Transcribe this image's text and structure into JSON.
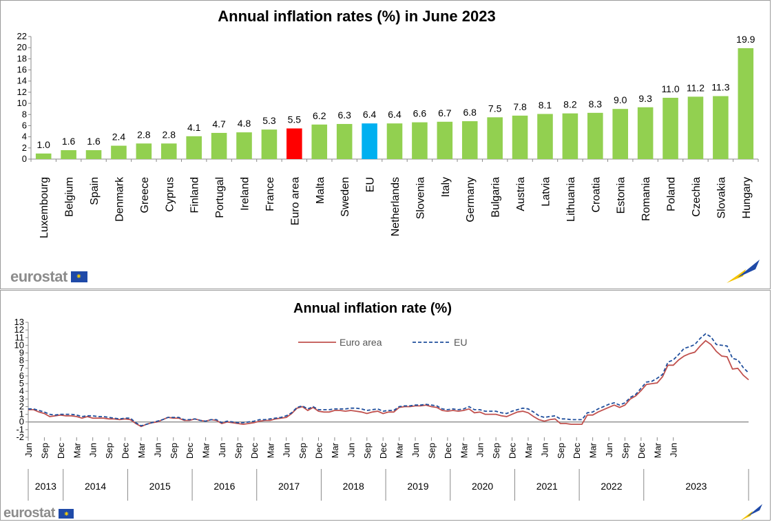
{
  "chart_data": [
    {
      "type": "bar",
      "title": "Annual inflation rates (%)  in June 2023",
      "categories": [
        "Luxembourg",
        "Belgium",
        "Spain",
        "Denmark",
        "Greece",
        "Cyprus",
        "Finland",
        "Portugal",
        "Ireland",
        "France",
        "Euro area",
        "Malta",
        "Sweden",
        "EU",
        "Netherlands",
        "Slovenia",
        "Italy",
        "Germany",
        "Bulgaria",
        "Austria",
        "Latvia",
        "Lithuania",
        "Croatia",
        "Estonia",
        "Romania",
        "Poland",
        "Czechia",
        "Slovakia",
        "Hungary"
      ],
      "values": [
        1.0,
        1.6,
        1.6,
        2.4,
        2.8,
        2.8,
        4.1,
        4.7,
        4.8,
        5.3,
        5.5,
        6.2,
        6.3,
        6.4,
        6.4,
        6.6,
        6.7,
        6.8,
        7.5,
        7.8,
        8.1,
        8.2,
        8.3,
        9.0,
        9.3,
        11.0,
        11.2,
        11.3,
        19.9
      ],
      "labels": [
        "1.0",
        "1.6",
        "1.6",
        "2.4",
        "2.8",
        "2.8",
        "4.1",
        "4.7",
        "4.8",
        "5.3",
        "5.5",
        "6.2",
        "6.3",
        "6.4",
        "6.4",
        "6.6",
        "6.7",
        "6.8",
        "7.5",
        "7.8",
        "8.1",
        "8.2",
        "8.3",
        "9.0",
        "9.3",
        "11.0",
        "11.2",
        "11.3",
        "19.9"
      ],
      "ylim": [
        0,
        22
      ],
      "yticks": [
        "0",
        "2",
        "4",
        "6",
        "8",
        "10",
        "12",
        "14",
        "16",
        "18",
        "20",
        "22"
      ],
      "colors": {
        "default": "#92d050",
        "highlight_euro_area": "#ff0000",
        "highlight_eu": "#00b0f0"
      },
      "highlights": {
        "Euro area": "#ff0000",
        "EU": "#00b0f0"
      },
      "grid": false
    },
    {
      "type": "line",
      "title": "Annual inflation rate (%)",
      "ylim": [
        -2,
        13
      ],
      "yticks": [
        "-2",
        "-1",
        "0",
        "1",
        "2",
        "3",
        "4",
        "5",
        "6",
        "7",
        "8",
        "9",
        "10",
        "11",
        "12",
        "13"
      ],
      "month_tick_labels": [
        "Jun",
        "Sep",
        "Dec",
        "Mar",
        "Jun",
        "Sep",
        "Dec",
        "Mar",
        "Jun",
        "Sep",
        "Dec",
        "Mar",
        "Jun",
        "Sep",
        "Dec",
        "Mar",
        "Jun",
        "Sep",
        "Dec",
        "Mar",
        "Jun",
        "Sep",
        "Dec",
        "Mar",
        "Jun",
        "Sep",
        "Dec",
        "Mar",
        "Jun",
        "Sep",
        "Dec",
        "Mar",
        "Jun",
        "Sep",
        "Dec",
        "Mar",
        "Jun",
        "Sep",
        "Dec",
        "Mar",
        "Jun"
      ],
      "years": [
        "2013",
        "2014",
        "2015",
        "2016",
        "2017",
        "2018",
        "2019",
        "2020",
        "2021",
        "2022",
        "2023"
      ],
      "x_start": "2013-06",
      "x_end": "2023-06",
      "legend_position": "top-left",
      "series": [
        {
          "name": "Euro area",
          "color": "#c0504d",
          "style": "solid",
          "values": [
            1.6,
            1.6,
            1.3,
            1.1,
            0.7,
            0.8,
            0.9,
            0.8,
            0.8,
            0.7,
            0.5,
            0.7,
            0.5,
            0.5,
            0.5,
            0.4,
            0.4,
            0.3,
            0.4,
            0.3,
            -0.2,
            -0.6,
            -0.3,
            -0.1,
            0.0,
            0.3,
            0.6,
            0.5,
            0.5,
            0.2,
            0.2,
            0.4,
            0.2,
            0.1,
            0.3,
            0.2,
            -0.2,
            0.0,
            -0.1,
            -0.2,
            -0.3,
            -0.2,
            -0.1,
            0.1,
            0.2,
            0.2,
            0.4,
            0.5,
            0.6,
            1.1,
            1.8,
            2.0,
            1.5,
            1.9,
            1.4,
            1.3,
            1.3,
            1.5,
            1.5,
            1.4,
            1.5,
            1.4,
            1.3,
            1.1,
            1.3,
            1.4,
            1.1,
            1.3,
            1.3,
            1.9,
            2.0,
            2.0,
            2.1,
            2.1,
            2.2,
            2.0,
            1.9,
            1.5,
            1.4,
            1.5,
            1.4,
            1.5,
            1.7,
            1.2,
            1.3,
            1.0,
            1.0,
            1.0,
            0.8,
            0.7,
            1.0,
            1.3,
            1.4,
            1.2,
            0.7,
            0.3,
            0.1,
            0.3,
            0.4,
            -0.2,
            -0.2,
            -0.3,
            -0.3,
            -0.3,
            0.9,
            0.9,
            1.3,
            1.6,
            1.9,
            2.2,
            1.9,
            2.2,
            3.0,
            3.4,
            4.1,
            4.9,
            5.0,
            5.1,
            5.9,
            7.4,
            7.4,
            8.1,
            8.6,
            8.9,
            9.1,
            9.9,
            10.6,
            10.1,
            9.2,
            8.6,
            8.5,
            6.9,
            7.0,
            6.1,
            5.5
          ]
        },
        {
          "name": "EU",
          "color": "#1f4e9c",
          "style": "dashed",
          "values": [
            1.7,
            1.7,
            1.5,
            1.3,
            1.0,
            0.9,
            1.0,
            1.0,
            1.0,
            0.9,
            0.7,
            0.8,
            0.8,
            0.7,
            0.7,
            0.6,
            0.5,
            0.4,
            0.5,
            0.5,
            -0.1,
            -0.5,
            -0.3,
            -0.1,
            0.1,
            0.3,
            0.6,
            0.6,
            0.6,
            0.3,
            0.3,
            0.4,
            0.2,
            0.1,
            0.3,
            0.3,
            -0.1,
            0.1,
            0.0,
            -0.1,
            -0.1,
            0.0,
            0.1,
            0.3,
            0.3,
            0.4,
            0.5,
            0.6,
            0.8,
            1.2,
            1.9,
            2.1,
            1.7,
            2.0,
            1.6,
            1.6,
            1.6,
            1.7,
            1.7,
            1.7,
            1.8,
            1.8,
            1.7,
            1.5,
            1.6,
            1.7,
            1.4,
            1.5,
            1.5,
            2.0,
            2.1,
            2.1,
            2.2,
            2.2,
            2.3,
            2.2,
            2.1,
            1.7,
            1.6,
            1.7,
            1.6,
            1.7,
            2.0,
            1.6,
            1.6,
            1.4,
            1.4,
            1.4,
            1.2,
            1.1,
            1.4,
            1.6,
            1.8,
            1.7,
            1.3,
            0.8,
            0.6,
            0.7,
            0.8,
            0.4,
            0.4,
            0.3,
            0.3,
            0.3,
            1.2,
            1.3,
            1.7,
            2.0,
            2.3,
            2.5,
            2.2,
            2.5,
            3.2,
            3.6,
            4.4,
            5.2,
            5.3,
            5.7,
            6.2,
            7.8,
            8.1,
            8.8,
            9.6,
            9.8,
            10.1,
            10.9,
            11.5,
            11.1,
            10.1,
            10.0,
            9.9,
            8.3,
            8.1,
            7.1,
            6.4
          ]
        }
      ]
    }
  ],
  "branding": {
    "logo_text_top": "eurostat",
    "logo_text_bottom": "eurostat"
  }
}
